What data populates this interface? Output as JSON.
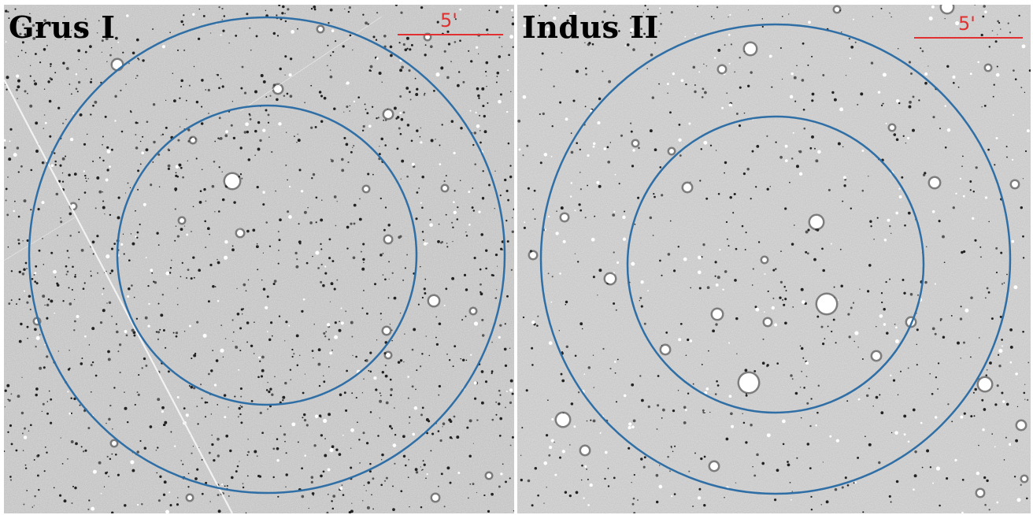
{
  "figure": {
    "panels": [
      {
        "id": "left",
        "title": "Grus I",
        "scale_label": "5'",
        "scale_arcmin": 5
      },
      {
        "id": "right",
        "title": "Indus II",
        "scale_label": "5'",
        "scale_arcmin": 5
      }
    ]
  },
  "colors": {
    "circle": "#2f6fa6",
    "scale_bar": "#e03030",
    "title": "#000000",
    "background_sky": "#b9b9b9"
  }
}
